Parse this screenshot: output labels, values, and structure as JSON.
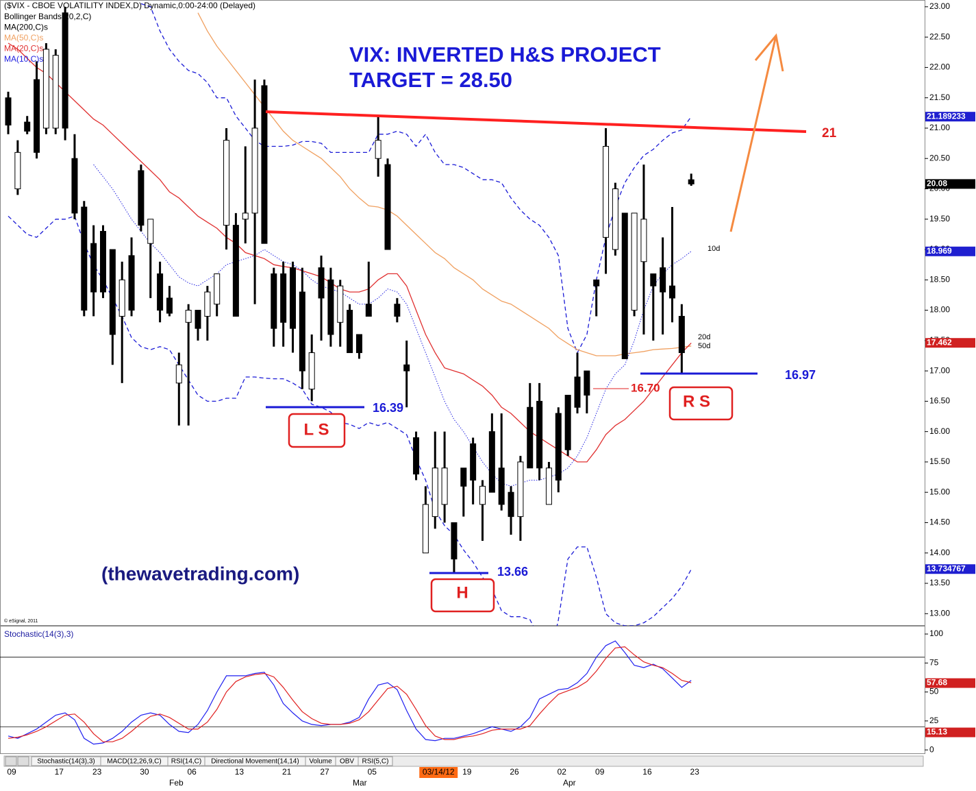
{
  "chart_data": [
    {
      "type": "candlestick",
      "title": "($VIX - CBOE VOLATILITY INDEX,D) Dynamic,0:00-24:00 (Delayed)",
      "categories": [
        "09",
        null,
        null,
        null,
        null,
        "17",
        null,
        null,
        null,
        "23",
        null,
        null,
        null,
        null,
        "30",
        null,
        null,
        null,
        null,
        "06",
        null,
        null,
        null,
        null,
        "13",
        null,
        null,
        null,
        null,
        "21",
        null,
        null,
        null,
        "27",
        null,
        null,
        null,
        null,
        "05",
        null,
        null,
        null,
        null,
        null,
        null,
        "03/14/12",
        null,
        null,
        "19",
        null,
        null,
        null,
        null,
        "26",
        null,
        null,
        null,
        null,
        "02",
        null,
        null,
        null,
        "09",
        null,
        null,
        null,
        null,
        "16",
        null,
        null,
        null,
        null,
        "23"
      ],
      "month_labels": [
        "Feb",
        "Mar",
        "Apr"
      ],
      "open": [
        21.5,
        20.0,
        21.1,
        21.8,
        21.0,
        21.0,
        22.9,
        20.5,
        19.7,
        19.1,
        19.3,
        19.0,
        17.9,
        18.9,
        20.3,
        19.1,
        18.6,
        18.2,
        16.8,
        17.8,
        18.0,
        17.9,
        18.1,
        19.4,
        19.4,
        19.5,
        19.6,
        21.7,
        18.6,
        18.6,
        18.7,
        18.3,
        16.7,
        18.7,
        18.5,
        17.8,
        18.0,
        17.6,
        18.1,
        20.5,
        20.4,
        18.1,
        17.1,
        15.9,
        14.0,
        14.6,
        14.8,
        14.5,
        15.4,
        15.8,
        14.8,
        16.0,
        15.4,
        15.0,
        14.6,
        16.4,
        16.5,
        14.8,
        16.3,
        16.6,
        16.9,
        17.0,
        18.5,
        19.2,
        19.0,
        19.6,
        18.0,
        18.8,
        18.6,
        18.7,
        18.4,
        17.9,
        20.15
      ],
      "high": [
        21.6,
        20.8,
        21.2,
        22.1,
        22.4,
        22.3,
        23.0,
        20.9,
        19.8,
        19.4,
        19.4,
        19.0,
        18.8,
        19.2,
        20.4,
        19.5,
        18.8,
        18.4,
        17.3,
        18.1,
        18.0,
        18.4,
        18.6,
        21.0,
        19.6,
        20.7,
        21.8,
        21.8,
        18.7,
        18.8,
        18.8,
        18.7,
        17.6,
        18.9,
        18.7,
        18.5,
        18.1,
        17.6,
        18.8,
        21.2,
        20.5,
        18.2,
        17.5,
        16.0,
        15.1,
        16.0,
        16.0,
        14.5,
        15.4,
        15.9,
        15.2,
        16.3,
        16.3,
        15.1,
        15.6,
        16.8,
        16.8,
        15.5,
        16.4,
        16.6,
        17.3,
        17.0,
        18.5,
        21.0,
        20.1,
        19.6,
        19.6,
        20.4,
        18.6,
        19.2,
        19.7,
        18.1,
        20.25
      ],
      "low": [
        20.9,
        19.9,
        20.9,
        20.5,
        20.9,
        20.9,
        20.8,
        19.5,
        17.9,
        17.9,
        18.2,
        17.1,
        16.8,
        17.9,
        19.3,
        18.2,
        17.8,
        17.9,
        16.1,
        16.1,
        17.5,
        17.5,
        17.9,
        19.0,
        17.9,
        19.1,
        18.1,
        19.1,
        17.4,
        17.4,
        17.3,
        16.7,
        16.5,
        17.5,
        17.4,
        17.4,
        17.3,
        17.2,
        17.9,
        20.2,
        19.0,
        17.8,
        16.4,
        15.2,
        14.0,
        14.4,
        14.5,
        13.66,
        14.6,
        14.8,
        14.2,
        15.0,
        14.7,
        14.3,
        14.2,
        15.4,
        15.2,
        14.8,
        15.0,
        15.6,
        16.3,
        16.3,
        17.9,
        18.6,
        18.9,
        17.2,
        17.9,
        17.6,
        17.5,
        17.6,
        17.8,
        16.97,
        20.05
      ],
      "close": [
        21.05,
        20.6,
        20.95,
        20.6,
        22.3,
        22.2,
        21.0,
        19.6,
        18.0,
        18.3,
        18.3,
        17.6,
        18.5,
        18.0,
        19.4,
        19.5,
        18.0,
        17.95,
        17.1,
        18.0,
        17.7,
        18.3,
        18.6,
        20.8,
        17.9,
        19.6,
        21.0,
        19.1,
        17.7,
        17.8,
        17.7,
        17.0,
        17.3,
        18.2,
        17.6,
        18.4,
        17.3,
        17.3,
        17.9,
        20.8,
        19.0,
        17.9,
        17.0,
        15.3,
        14.8,
        15.4,
        15.4,
        13.9,
        15.1,
        15.2,
        15.1,
        15.0,
        14.8,
        14.6,
        15.5,
        15.4,
        15.4,
        15.4,
        15.2,
        15.7,
        16.4,
        16.6,
        18.4,
        20.7,
        20.0,
        17.2,
        19.6,
        19.5,
        18.4,
        18.3,
        18.2,
        17.3,
        20.08
      ],
      "up_color": "#ffffff",
      "down_color": "#000000",
      "series": [
        {
          "name": "Bollinger Bands(20,2,C)",
          "color": "#1a1ad6",
          "label_color": "#000000",
          "dash": "6,4",
          "upper": [
            null,
            null,
            null,
            null,
            null,
            null,
            null,
            null,
            null,
            null,
            null,
            null,
            null,
            null,
            23.05,
            23.0,
            22.6,
            22.3,
            22.1,
            21.95,
            21.9,
            21.75,
            21.5,
            21.5,
            21.2,
            21.0,
            20.8,
            20.7,
            20.7,
            20.7,
            20.72,
            20.78,
            20.78,
            20.75,
            20.6,
            20.6,
            20.6,
            20.6,
            20.6,
            20.9,
            20.9,
            20.95,
            20.9,
            20.7,
            20.9,
            20.6,
            20.4,
            20.4,
            20.35,
            20.25,
            20.15,
            20.15,
            20.1,
            19.85,
            19.65,
            19.5,
            19.4,
            19.2,
            18.9,
            17.7,
            17.3,
            17.6,
            18.5,
            19.2,
            19.7,
            20.1,
            20.35,
            20.55,
            20.65,
            20.8,
            20.92,
            20.97,
            21.19
          ],
          "lower": [
            19.55,
            19.4,
            19.25,
            19.2,
            19.35,
            19.5,
            19.5,
            19.55,
            19.1,
            18.75,
            18.5,
            18.2,
            17.9,
            17.55,
            17.4,
            17.35,
            17.4,
            17.35,
            17.1,
            16.85,
            16.6,
            16.5,
            16.5,
            16.55,
            16.55,
            16.9,
            16.9,
            16.88,
            16.87,
            16.87,
            16.8,
            16.7,
            16.45,
            16.4,
            16.32,
            16.15,
            16.12,
            16.05,
            16.15,
            16.1,
            16.15,
            16.05,
            15.95,
            15.55,
            15.2,
            14.7,
            14.45,
            14.3,
            14.05,
            13.85,
            13.6,
            13.4,
            13.05,
            12.95,
            12.95,
            12.9,
            12.6,
            12.2,
            12.9,
            13.9,
            14.1,
            14.1,
            13.6,
            13.0,
            12.85,
            12.8,
            12.8,
            12.85,
            12.95,
            13.1,
            13.25,
            13.45,
            13.73
          ]
        },
        {
          "name": "MA(200,C)s",
          "color": "#000000",
          "label_color": "#000000"
        },
        {
          "name": "MA(50,C)s",
          "color": "#f0a060",
          "label_color": "#f0a060",
          "values": [
            null,
            null,
            null,
            null,
            null,
            null,
            null,
            null,
            null,
            null,
            null,
            null,
            null,
            null,
            null,
            null,
            null,
            null,
            null,
            null,
            22.9,
            22.6,
            22.35,
            22.15,
            21.95,
            21.75,
            21.55,
            21.35,
            21.15,
            20.95,
            20.8,
            20.7,
            20.6,
            20.5,
            20.35,
            20.2,
            20.0,
            19.85,
            19.72,
            19.7,
            19.65,
            19.55,
            19.4,
            19.25,
            19.1,
            18.95,
            18.85,
            18.7,
            18.6,
            18.5,
            18.35,
            18.25,
            18.15,
            18.1,
            18.0,
            17.9,
            17.8,
            17.7,
            17.55,
            17.45,
            17.35,
            17.3,
            17.25,
            17.25,
            17.25,
            17.28,
            17.3,
            17.32,
            17.35,
            17.36,
            17.37,
            17.39,
            17.41
          ]
        },
        {
          "name": "MA(20,C)s",
          "color": "#e03030",
          "label_color": "#e03030",
          "values": [
            22.4,
            22.3,
            22.15,
            22.0,
            21.9,
            21.75,
            21.6,
            21.45,
            21.3,
            21.15,
            21.05,
            20.9,
            20.75,
            20.6,
            20.45,
            20.3,
            20.15,
            19.95,
            19.85,
            19.7,
            19.55,
            19.45,
            19.35,
            19.2,
            19.1,
            18.95,
            18.9,
            18.85,
            18.75,
            18.72,
            18.7,
            18.65,
            18.6,
            18.55,
            18.45,
            18.35,
            18.3,
            18.3,
            18.35,
            18.5,
            18.6,
            18.6,
            18.4,
            18.0,
            17.6,
            17.3,
            17.05,
            17.0,
            16.95,
            16.85,
            16.75,
            16.6,
            16.4,
            16.3,
            16.15,
            16.0,
            15.9,
            15.8,
            15.7,
            15.6,
            15.5,
            15.5,
            15.7,
            15.95,
            16.1,
            16.2,
            16.35,
            16.5,
            16.7,
            16.9,
            17.1,
            17.3,
            17.46
          ]
        },
        {
          "name": "MA(10,C)s",
          "color": "#2020e0",
          "label_color": "#2020e0",
          "dash": "1.5,2",
          "values": [
            null,
            null,
            null,
            null,
            null,
            null,
            null,
            null,
            null,
            20.4,
            20.2,
            20.0,
            19.75,
            19.5,
            19.3,
            19.1,
            18.95,
            18.75,
            18.55,
            18.45,
            18.4,
            18.5,
            18.6,
            18.75,
            18.8,
            18.85,
            18.9,
            19.0,
            18.9,
            18.8,
            18.75,
            18.65,
            18.5,
            18.4,
            18.35,
            18.3,
            18.2,
            18.1,
            18.1,
            18.2,
            18.35,
            18.3,
            18.1,
            17.7,
            17.3,
            16.9,
            16.5,
            16.2,
            16.0,
            15.75,
            15.5,
            15.3,
            15.15,
            15.1,
            15.15,
            15.2,
            15.2,
            15.25,
            15.3,
            15.4,
            15.6,
            15.9,
            16.3,
            16.7,
            16.95,
            17.1,
            17.5,
            18.0,
            18.4,
            18.6,
            18.75,
            18.85,
            18.97
          ]
        }
      ],
      "ylim": [
        12.8,
        23.1
      ],
      "yticks": [
        {
          "value": 23,
          "label": "23.00"
        },
        {
          "value": 22.5,
          "label": "22.50"
        },
        {
          "value": 22,
          "label": "22.00"
        },
        {
          "value": 21.5,
          "label": "21.50"
        },
        {
          "value": 21,
          "label": "21.00"
        },
        {
          "value": 20.5,
          "label": "20.50"
        },
        {
          "value": 20,
          "label": "20.00"
        },
        {
          "value": 19.5,
          "label": "19.50"
        },
        {
          "value": 19,
          "label": "19.00"
        },
        {
          "value": 18.5,
          "label": "18.50"
        },
        {
          "value": 18,
          "label": "18.00"
        },
        {
          "value": 17.5,
          "label": "17.50"
        },
        {
          "value": 17,
          "label": "17.00"
        },
        {
          "value": 16.5,
          "label": "16.50"
        },
        {
          "value": 16,
          "label": "16.00"
        },
        {
          "value": 15.5,
          "label": "15.50"
        },
        {
          "value": 15,
          "label": "15.00"
        },
        {
          "value": 14.5,
          "label": "14.50"
        },
        {
          "value": 14,
          "label": "14.00"
        },
        {
          "value": 13.5,
          "label": "13.50"
        },
        {
          "value": 13,
          "label": "13.00"
        }
      ],
      "price_flags": [
        {
          "value": 21.189233,
          "color": "#1f1fd0"
        },
        {
          "value": 20.08,
          "color": "#000000"
        },
        {
          "value": 18.969,
          "color": "#1f1fd0"
        },
        {
          "value": 17.462,
          "color": "#d02020"
        },
        {
          "value": 13.734767,
          "color": "#1f1fd0"
        }
      ],
      "annotations": {
        "headline": [
          "VIX: INVERTED H&S PROJECT",
          "TARGET = 28.50"
        ],
        "site": "(thewavetrading.com)",
        "neckline": "21",
        "left_shoulder": "L S",
        "left_level": "16.39",
        "head": "H",
        "head_level": "13.66",
        "right_shoulder": "R S",
        "right_level": "16.97",
        "ma_cross": "16.70",
        "ma10": "10d",
        "ma20": "20d",
        "ma50": "50d"
      },
      "copyright": "© eSignal, 2011"
    },
    {
      "type": "line",
      "title": "Stochastic(14(3),3)",
      "series": [
        {
          "color": "#1f1ff0",
          "values": [
            12,
            10,
            14,
            18,
            24,
            30,
            32,
            26,
            10,
            5,
            6,
            10,
            16,
            24,
            30,
            32,
            30,
            22,
            16,
            15,
            22,
            34,
            50,
            64,
            64,
            64,
            66,
            67,
            56,
            40,
            32,
            25,
            22,
            21,
            22,
            22,
            24,
            28,
            44,
            56,
            58,
            52,
            34,
            18,
            9,
            8,
            10,
            10,
            12,
            14,
            17,
            20,
            18,
            16,
            20,
            28,
            44,
            48,
            52,
            53,
            58,
            66,
            80,
            90,
            94,
            84,
            73,
            71,
            74,
            70,
            62,
            54,
            60
          ]
        },
        {
          "color": "#e02020",
          "values": [
            10,
            11,
            13,
            16,
            20,
            25,
            30,
            31,
            24,
            14,
            7,
            7,
            10,
            16,
            23,
            29,
            31,
            28,
            23,
            18,
            18,
            24,
            35,
            50,
            59,
            63,
            65,
            66,
            63,
            54,
            43,
            33,
            27,
            23,
            22,
            22,
            23,
            26,
            33,
            43,
            53,
            55,
            48,
            35,
            21,
            12,
            9,
            9,
            11,
            12,
            14,
            17,
            18,
            18,
            18,
            21,
            31,
            40,
            48,
            51,
            54,
            59,
            68,
            79,
            88,
            89,
            82,
            76,
            73,
            71,
            66,
            60,
            58
          ]
        }
      ],
      "ylim": [
        -3.5,
        106.5
      ],
      "yticks": [
        0,
        25,
        50,
        75,
        100
      ],
      "hlines": [
        80,
        20
      ],
      "flags": [
        {
          "value": 57.68,
          "color": "#d02020"
        },
        {
          "value": 15.13,
          "color": "#d02020"
        }
      ]
    }
  ],
  "tabs": [
    "Stochastic(14(3),3)",
    "MACD(12,26,9,C)",
    "RSI(14,C)",
    "Directional Movement(14,14)",
    "Volume",
    "OBV",
    "RSI(5,C)"
  ]
}
